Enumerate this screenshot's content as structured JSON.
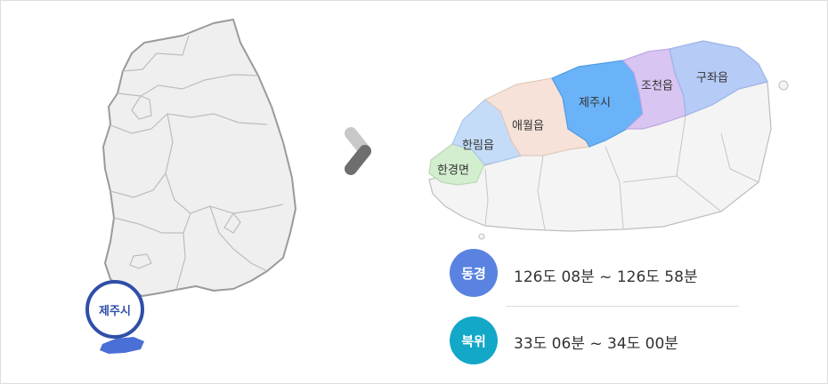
{
  "korea_map": {
    "highlight_label": "제주시",
    "highlight_color": "#2f4fa8",
    "jeju_fill": "#4a6fd6"
  },
  "jeju_map": {
    "regions": [
      {
        "key": "jeju_si",
        "label": "제주시",
        "color": "#6ab3f8"
      },
      {
        "key": "aewol",
        "label": "애월읍",
        "color": "#f6e2d8"
      },
      {
        "key": "hallim",
        "label": "한림읍",
        "color": "#c5dcf8"
      },
      {
        "key": "hangyeong",
        "label": "한경면",
        "color": "#d3edcf"
      },
      {
        "key": "jocheon",
        "label": "조천읍",
        "color": "#d8c5f2"
      },
      {
        "key": "gujwa",
        "label": "구좌읍",
        "color": "#b6cbf5"
      }
    ]
  },
  "coordinates": {
    "longitude": {
      "badge": "동경",
      "range": "126도 08분 ~ 126도 58분",
      "color": "#5a82e0"
    },
    "latitude": {
      "badge": "북위",
      "range": "33도 06분 ~ 34도 00분",
      "color": "#13a8c8"
    }
  }
}
